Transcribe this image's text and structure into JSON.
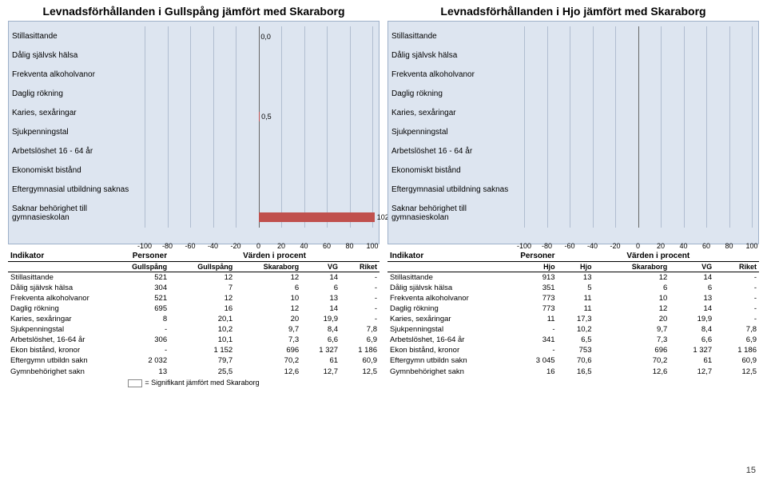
{
  "pageNumber": "15",
  "significanceNote": "= Signifikant jämfört med Skaraborg",
  "chartConfig": {
    "xmin": -100,
    "xmax": 100,
    "ticks": [
      -100,
      -80,
      -60,
      -40,
      -20,
      0,
      20,
      40,
      60,
      80,
      100
    ],
    "background": "#dde5f0",
    "barColor": "#c0504d",
    "gridColor": "#b0bdd0",
    "categories": [
      "Stillasittande",
      "Dålig självsk hälsa",
      "Frekventa alkoholvanor",
      "Daglig rökning",
      "Karies, sexåringar",
      "Sjukpenningstal",
      "Arbetslöshet 16 - 64 år",
      "Ekonomiskt bistånd",
      "Eftergymnasial utbildning saknas",
      "Saknar behörighet till gymnasieskolan"
    ]
  },
  "left": {
    "chartTitle": "Levnadsförhållanden i Gullspång jämfört med Skaraborg",
    "bars": [
      {
        "start": 0,
        "end": 0,
        "label": "0,0"
      },
      {
        "start": 0,
        "end": 0,
        "label": ""
      },
      {
        "start": 0,
        "end": 0,
        "label": ""
      },
      {
        "start": 0,
        "end": 0,
        "label": ""
      },
      {
        "start": 0,
        "end": 0.5,
        "label": "0,5"
      },
      {
        "start": 0,
        "end": 0,
        "label": ""
      },
      {
        "start": 0,
        "end": 0,
        "label": ""
      },
      {
        "start": 0,
        "end": 0,
        "label": ""
      },
      {
        "start": 0,
        "end": 0,
        "label": ""
      },
      {
        "start": 0,
        "end": 102,
        "label": "102"
      }
    ],
    "table": {
      "title": "Indikator",
      "personsHeader": "Personer",
      "valuesHeader": "Värden i procent",
      "cols": [
        "Gullspång",
        "Gullspång",
        "Skaraborg",
        "VG",
        "Riket"
      ],
      "rows": [
        {
          "ind": "Stillasittande",
          "c": [
            "521",
            "12",
            "12",
            "14",
            "-"
          ]
        },
        {
          "ind": "Dålig självsk hälsa",
          "c": [
            "304",
            "7",
            "6",
            "6",
            "-"
          ]
        },
        {
          "ind": "Frekventa alkoholvanor",
          "c": [
            "521",
            "12",
            "10",
            "13",
            "-"
          ]
        },
        {
          "ind": "Daglig rökning",
          "c": [
            "695",
            "16",
            "12",
            "14",
            "-"
          ]
        },
        {
          "ind": "Karies, sexåringar",
          "c": [
            "8",
            "20,1",
            "20",
            "19,9",
            "-"
          ]
        },
        {
          "ind": "Sjukpenningstal",
          "c": [
            "-",
            "10,2",
            "9,7",
            "8,4",
            "7,8"
          ]
        },
        {
          "ind": "Arbetslöshet, 16-64 år",
          "c": [
            "306",
            "10,1",
            "7,3",
            "6,6",
            "6,9"
          ]
        },
        {
          "ind": "Ekon bistånd, kronor",
          "c": [
            "-",
            "1 152",
            "696",
            "1 327",
            "1 186"
          ]
        },
        {
          "ind": "Eftergymn utbildn sakn",
          "c": [
            "2 032",
            "79,7",
            "70,2",
            "61",
            "60,9"
          ]
        },
        {
          "ind": "Gymnbehörighet sakn",
          "c": [
            "13",
            "25,5",
            "12,6",
            "12,7",
            "12,5"
          ]
        }
      ]
    }
  },
  "right": {
    "chartTitle": "Levnadsförhållanden i Hjo jämfört med Skaraborg",
    "bars": [
      {
        "start": 0,
        "end": 0,
        "label": ""
      },
      {
        "start": 0,
        "end": 0,
        "label": ""
      },
      {
        "start": 0,
        "end": 0,
        "label": ""
      },
      {
        "start": 0,
        "end": 0,
        "label": ""
      },
      {
        "start": 0,
        "end": 0,
        "label": ""
      },
      {
        "start": 0,
        "end": 0,
        "label": ""
      },
      {
        "start": 0,
        "end": 0,
        "label": ""
      },
      {
        "start": 0,
        "end": 0,
        "label": ""
      },
      {
        "start": 0,
        "end": 0,
        "label": ""
      },
      {
        "start": 0,
        "end": 0,
        "label": ""
      }
    ],
    "table": {
      "title": "Indikator",
      "personsHeader": "Personer",
      "valuesHeader": "Värden i procent",
      "cols": [
        "Hjo",
        "Hjo",
        "Skaraborg",
        "VG",
        "Riket"
      ],
      "rows": [
        {
          "ind": "Stillasittande",
          "c": [
            "913",
            "13",
            "12",
            "14",
            "-"
          ]
        },
        {
          "ind": "Dålig självsk hälsa",
          "c": [
            "351",
            "5",
            "6",
            "6",
            "-"
          ]
        },
        {
          "ind": "Frekventa alkoholvanor",
          "c": [
            "773",
            "11",
            "10",
            "13",
            "-"
          ]
        },
        {
          "ind": "Daglig rökning",
          "c": [
            "773",
            "11",
            "12",
            "14",
            "-"
          ]
        },
        {
          "ind": "Karies, sexåringar",
          "c": [
            "11",
            "17,3",
            "20",
            "19,9",
            "-"
          ]
        },
        {
          "ind": "Sjukpenningstal",
          "c": [
            "-",
            "10,2",
            "9,7",
            "8,4",
            "7,8"
          ]
        },
        {
          "ind": "Arbetslöshet, 16-64 år",
          "c": [
            "341",
            "6,5",
            "7,3",
            "6,6",
            "6,9"
          ]
        },
        {
          "ind": "Ekon bistånd, kronor",
          "c": [
            "-",
            "753",
            "696",
            "1 327",
            "1 186"
          ]
        },
        {
          "ind": "Eftergymn utbildn sakn",
          "c": [
            "3 045",
            "70,6",
            "70,2",
            "61",
            "60,9"
          ]
        },
        {
          "ind": "Gymnbehörighet sakn",
          "c": [
            "16",
            "16,5",
            "12,6",
            "12,7",
            "12,5"
          ]
        }
      ]
    }
  }
}
